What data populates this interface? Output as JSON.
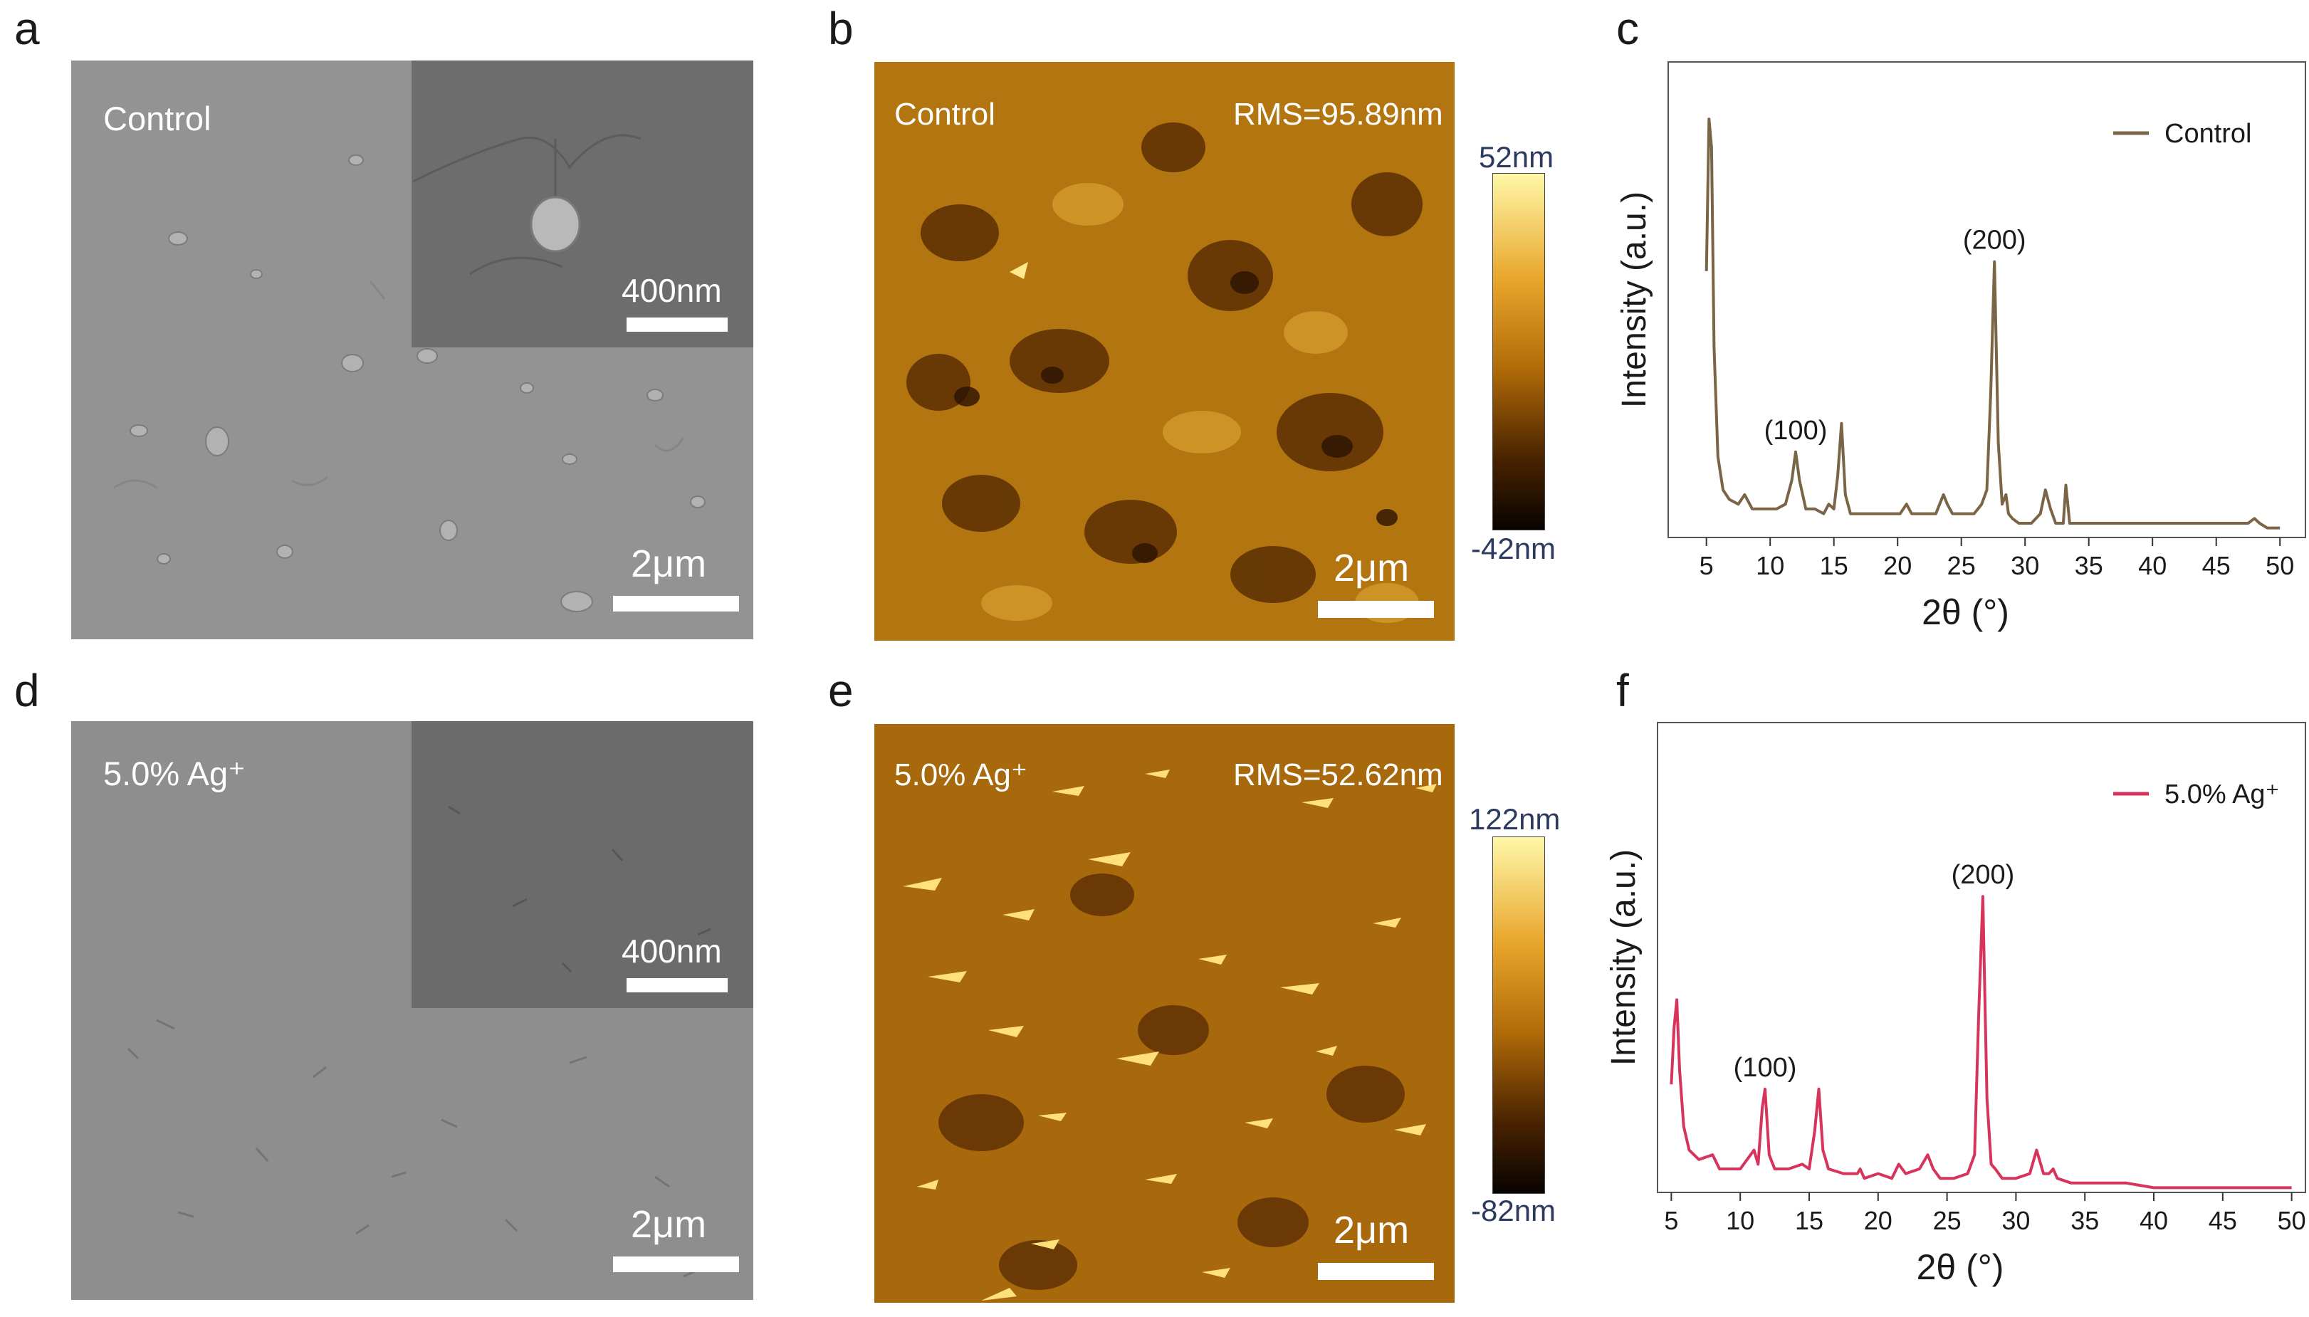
{
  "figure": {
    "panels": [
      {
        "letter": "a"
      },
      {
        "letter": "b"
      },
      {
        "letter": "c"
      },
      {
        "letter": "d"
      },
      {
        "letter": "e"
      },
      {
        "letter": "f"
      }
    ],
    "sem": [
      {
        "label": "Control",
        "scale_main": "2μm",
        "scale_inset": "400nm"
      },
      {
        "label": "5.0% Ag⁺",
        "scale_main": "2μm",
        "scale_inset": "400nm"
      }
    ],
    "afm": [
      {
        "label": "Control",
        "rms": "RMS=95.89nm",
        "scale": "2μm",
        "cbar_max": "52nm",
        "cbar_min": "-42nm"
      },
      {
        "label": "5.0% Ag⁺",
        "rms": "RMS=52.62nm",
        "scale": "2μm",
        "cbar_max": "122nm",
        "cbar_min": "-82nm"
      }
    ]
  },
  "colors": {
    "control": "#7a6547",
    "ag": "#d6345a",
    "afm_low": "#1a0a02",
    "afm_mid": "#b06a08",
    "afm_high": "#fff7a8"
  },
  "chart_data": [
    {
      "type": "line",
      "panel": "c",
      "xlabel": "2θ (°)",
      "ylabel": "Intensity (a.u.)",
      "xlim": [
        2,
        52
      ],
      "ylim": [
        0,
        100
      ],
      "xticks": [
        5,
        10,
        15,
        20,
        25,
        30,
        35,
        40,
        45,
        50
      ],
      "legend_position": "top-right",
      "annotations": [
        {
          "text": "(100)",
          "x": 12.0,
          "y": 18
        },
        {
          "text": "(200)",
          "x": 27.6,
          "y": 58
        }
      ],
      "series": [
        {
          "name": "Control",
          "x": [
            5.0,
            5.2,
            5.4,
            5.6,
            5.9,
            6.3,
            6.8,
            7.5,
            8.0,
            8.6,
            9.5,
            10.5,
            11.2,
            11.7,
            12.0,
            12.3,
            12.8,
            13.5,
            14.2,
            14.6,
            15.0,
            15.3,
            15.6,
            15.9,
            16.3,
            17.5,
            19.0,
            20.2,
            20.7,
            21.1,
            22.0,
            23.0,
            23.6,
            23.9,
            24.3,
            25.0,
            26.0,
            26.6,
            27.0,
            27.3,
            27.6,
            27.9,
            28.2,
            28.5,
            28.7,
            29.0,
            29.5,
            30.5,
            31.2,
            31.6,
            32.0,
            32.4,
            32.7,
            33.0,
            33.2,
            33.5,
            34.5,
            36.0,
            37.5,
            38.5,
            40.0,
            41.5,
            42.5,
            43.5,
            45.0,
            46.5,
            47.5,
            48.0,
            48.4,
            49.0,
            50.0
          ],
          "y": [
            56,
            88,
            82,
            40,
            17,
            10,
            8,
            7,
            9,
            6,
            6,
            6,
            7,
            12,
            18,
            12,
            6,
            6,
            5,
            7,
            6,
            13,
            24,
            9,
            5,
            5,
            5,
            5,
            7,
            5,
            5,
            5,
            9,
            7,
            5,
            5,
            5,
            7,
            10,
            30,
            58,
            20,
            7,
            9,
            5,
            4,
            3,
            3,
            5,
            10,
            6,
            3,
            3,
            3,
            11,
            3,
            3,
            3,
            3,
            3,
            3,
            3,
            3,
            3,
            3,
            3,
            3,
            4,
            3,
            2,
            2
          ]
        }
      ]
    },
    {
      "type": "line",
      "panel": "f",
      "xlabel": "2θ (°)",
      "ylabel": "Intensity (a.u.)",
      "xlim": [
        4,
        51
      ],
      "ylim": [
        0,
        100
      ],
      "xticks": [
        5,
        10,
        15,
        20,
        25,
        30,
        35,
        40,
        45,
        50
      ],
      "legend_position": "top-right",
      "annotations": [
        {
          "text": "(100)",
          "x": 11.8,
          "y": 22
        },
        {
          "text": "(200)",
          "x": 27.6,
          "y": 63
        }
      ],
      "series": [
        {
          "name": "5.0% Ag⁺",
          "x": [
            5.0,
            5.2,
            5.4,
            5.6,
            5.9,
            6.3,
            7.0,
            8.0,
            8.5,
            9.0,
            10.0,
            11.0,
            11.3,
            11.6,
            11.8,
            12.1,
            12.5,
            13.5,
            14.5,
            15.0,
            15.4,
            15.7,
            16.0,
            16.4,
            17.5,
            18.5,
            18.7,
            19.0,
            20.0,
            21.0,
            21.5,
            22.0,
            23.0,
            23.6,
            24.0,
            24.5,
            25.5,
            26.5,
            27.0,
            27.3,
            27.6,
            27.9,
            28.2,
            28.5,
            29.0,
            30.0,
            31.0,
            31.5,
            32.0,
            32.4,
            32.7,
            33.0,
            34.0,
            36.0,
            38.0,
            40.0,
            42.0,
            44.0,
            46.0,
            48.0,
            50.0
          ],
          "y": [
            23,
            35,
            41,
            26,
            14,
            9,
            7,
            8,
            5,
            5,
            5,
            9,
            6,
            18,
            22,
            8,
            5,
            5,
            6,
            5,
            13,
            22,
            9,
            5,
            4,
            4,
            5,
            3,
            4,
            3,
            6,
            4,
            5,
            8,
            5,
            3,
            3,
            4,
            8,
            38,
            63,
            20,
            6,
            5,
            3,
            3,
            4,
            9,
            4,
            4,
            5,
            3,
            2,
            2,
            2,
            1,
            1,
            1,
            1,
            1,
            1
          ]
        }
      ]
    }
  ]
}
